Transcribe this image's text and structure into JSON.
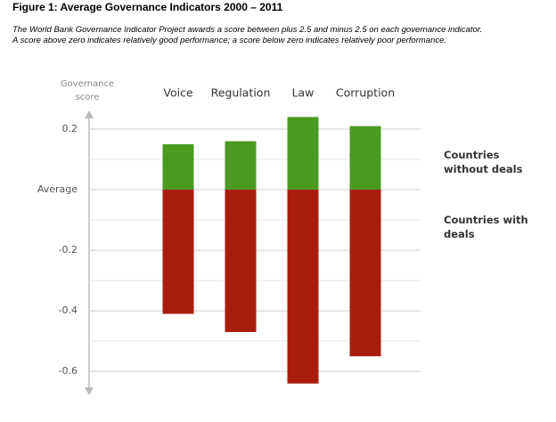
{
  "chart_data": {
    "type": "bar",
    "title": "Figure 1: Average Governance Indicators 2000 – 2011",
    "subtitle": [
      "The World Bank Governance Indicator Project awards a score between plus 2.5 and minus 2.5 on each governance indicator.",
      "A score above zero indicates relatively good performance; a score below zero indicates relatively poor performance."
    ],
    "y_label": "Governance score",
    "categories": [
      "Voice",
      "Regulation",
      "Law",
      "Corruption"
    ],
    "series": [
      {
        "name": "Countries without deals",
        "color": "#4a9a22",
        "values": [
          0.15,
          0.16,
          0.24,
          0.21
        ]
      },
      {
        "name": "Countries with deals",
        "color": "#a81c0c",
        "values": [
          -0.41,
          -0.47,
          -0.64,
          -0.55
        ]
      }
    ],
    "ylim": [
      -0.67,
      0.25
    ],
    "yticks": [
      0.2,
      {
        "value": 0,
        "label": "Average"
      },
      -0.2,
      -0.4,
      -0.6
    ],
    "minor_yticks": [
      0.1,
      -0.1,
      -0.3,
      -0.5
    ],
    "grid": true
  }
}
